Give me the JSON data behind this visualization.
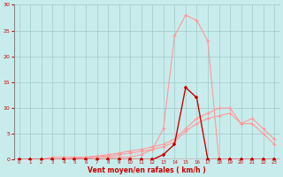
{
  "xlabel": "Vent moyen/en rafales ( km/h )",
  "background_color": "#c8ecec",
  "grid_color": "#a0c8c8",
  "x_values": [
    0,
    1,
    2,
    3,
    4,
    5,
    6,
    7,
    8,
    9,
    10,
    11,
    12,
    13,
    14,
    15,
    16,
    17,
    18,
    19,
    20,
    21,
    22,
    23
  ],
  "line_bell": [
    0,
    0,
    0,
    0.5,
    0.5,
    0.5,
    0.5,
    0.5,
    0.5,
    0.5,
    0.5,
    1,
    2,
    6,
    24,
    28,
    27,
    23,
    0,
    0,
    0,
    0,
    0,
    0
  ],
  "line_dark": [
    0,
    0,
    0,
    0,
    0,
    0,
    0,
    0,
    0,
    0,
    0,
    0,
    0,
    1,
    3,
    14,
    12,
    0,
    0,
    0,
    0,
    0,
    0,
    0
  ],
  "line_ramp1": [
    0,
    0,
    0,
    0,
    0,
    0.3,
    0.5,
    0.7,
    1,
    1.3,
    1.7,
    2,
    2.5,
    3,
    4,
    6,
    8,
    9,
    10,
    10,
    7,
    8,
    6,
    4
  ],
  "line_ramp2": [
    0,
    0,
    0,
    0,
    0,
    0.2,
    0.3,
    0.5,
    0.7,
    1,
    1.3,
    1.6,
    2,
    2.5,
    3.5,
    5.5,
    7,
    8,
    8.5,
    9,
    7,
    7,
    5,
    3
  ],
  "color_light": "#ff9999",
  "color_dark": "#cc0000",
  "ylim": [
    0,
    30
  ],
  "xlim": [
    -0.5,
    23.5
  ],
  "yticks": [
    0,
    5,
    10,
    15,
    20,
    25,
    30
  ],
  "xticks": [
    0,
    1,
    2,
    3,
    4,
    5,
    6,
    7,
    8,
    9,
    10,
    11,
    12,
    13,
    14,
    15,
    16,
    17,
    18,
    19,
    20,
    21,
    22,
    23
  ]
}
